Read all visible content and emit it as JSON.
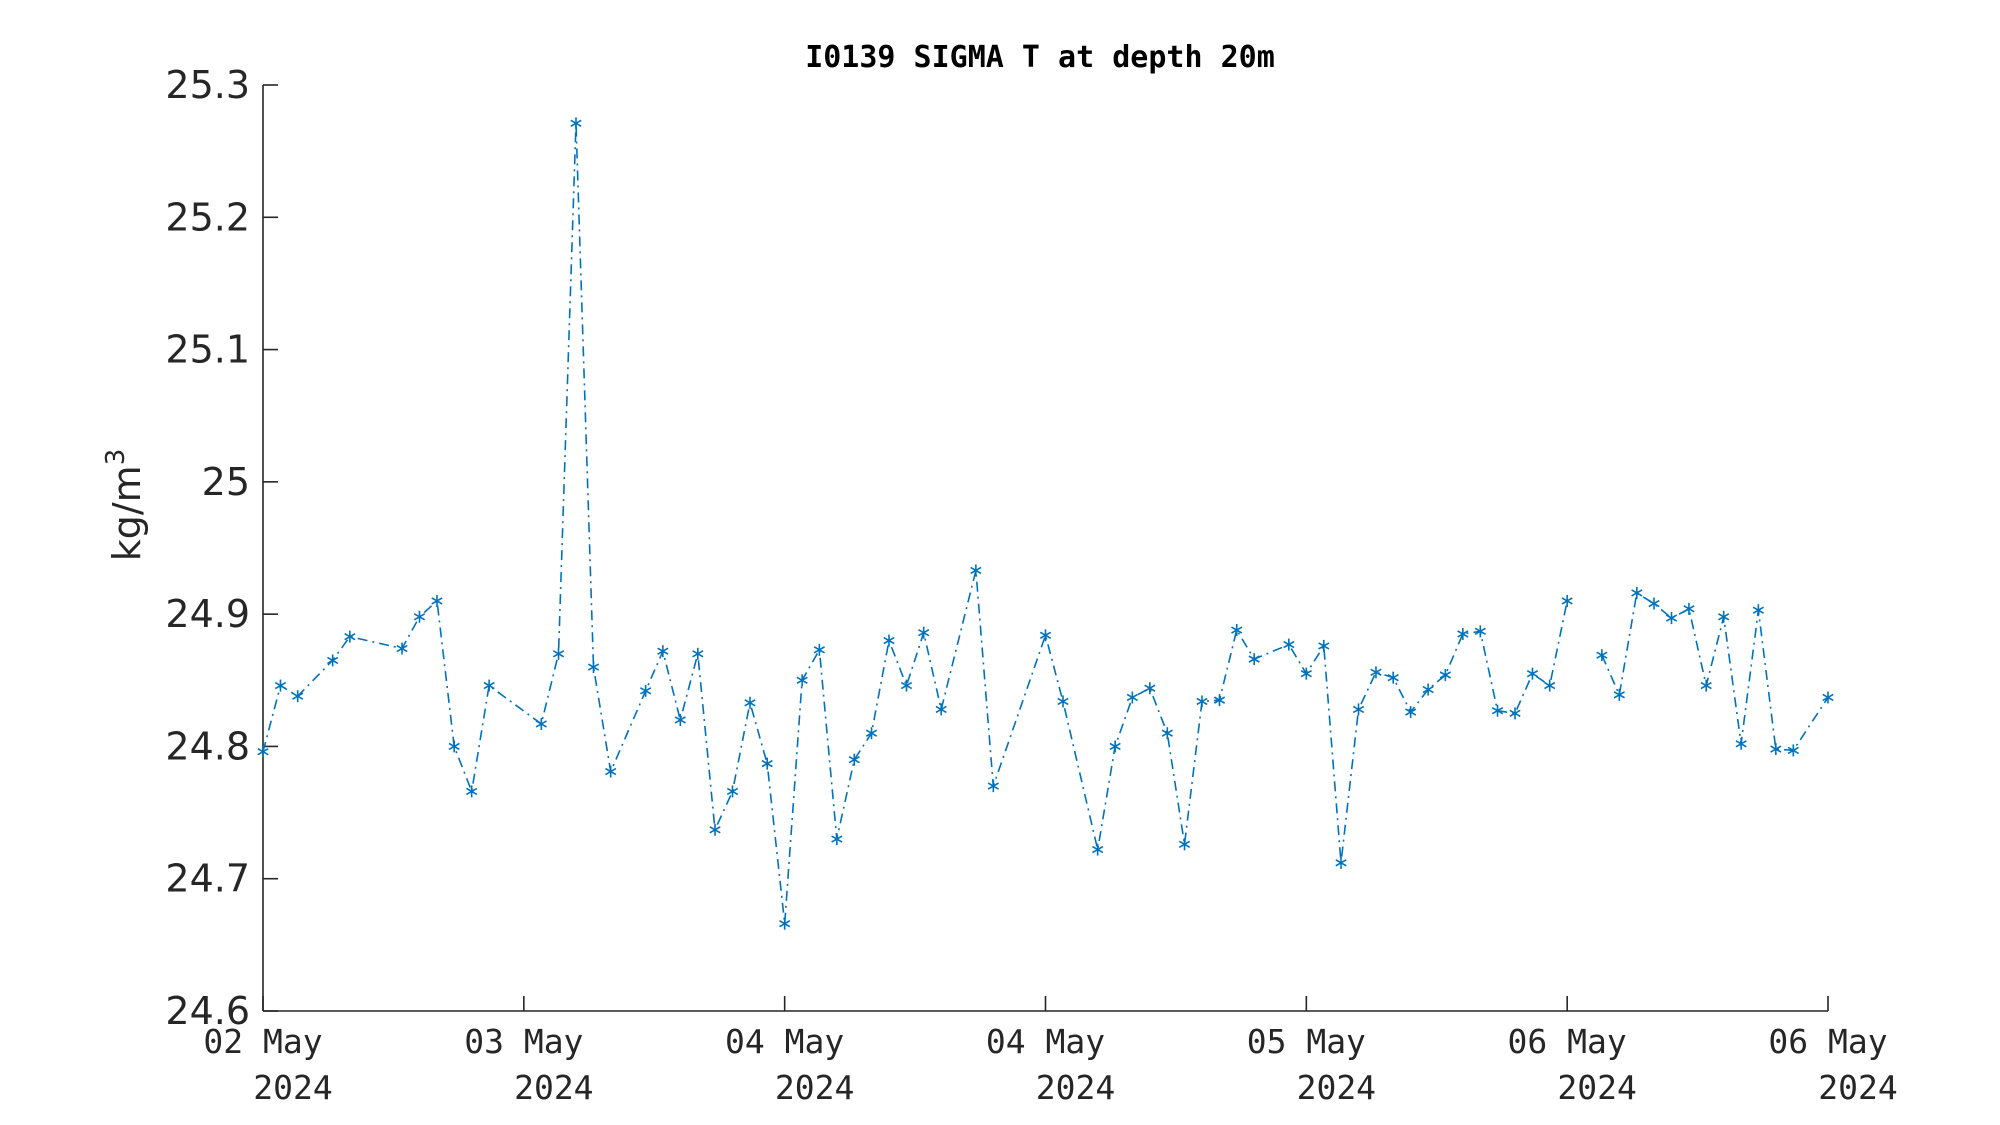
{
  "chart_data": {
    "type": "line",
    "title": "I0139 SIGMA T at depth 20m",
    "ylabel": "kg/m",
    "ylabel_sup": "3",
    "xlabel": "",
    "xlim": [
      0,
      6
    ],
    "ylim": [
      24.6,
      25.3
    ],
    "grid": false,
    "y_ticks": [
      24.6,
      24.7,
      24.8,
      24.9,
      25.0,
      25.1,
      25.2,
      25.3
    ],
    "y_tick_labels": [
      "24.6",
      "24.7",
      "24.8",
      "24.9",
      "25",
      "25.1",
      "25.2",
      "25.3"
    ],
    "x_ticks": [
      0,
      1,
      2,
      3,
      4,
      5,
      6
    ],
    "x_tick_labels": [
      [
        "02 May",
        "2024"
      ],
      [
        "03 May",
        "2024"
      ],
      [
        "04 May",
        "2024"
      ],
      [
        "04 May",
        "2024"
      ],
      [
        "05 May",
        "2024"
      ],
      [
        "06 May",
        "2024"
      ],
      [
        "06 May",
        "2024"
      ]
    ],
    "color": "#0072BD",
    "line_style": "dash-dot",
    "marker": "asterisk",
    "series": [
      {
        "segments": [
          {
            "x": [
              0,
              0.067,
              0.133,
              0.267,
              0.333,
              0.533,
              0.6,
              0.667,
              0.733,
              0.8,
              0.867,
              1.067,
              1.133,
              1.2,
              1.267,
              1.333,
              1.467,
              1.533,
              1.6,
              1.667,
              1.733,
              1.8,
              1.867,
              1.933,
              2.0,
              2.067,
              2.133,
              2.2,
              2.267,
              2.333,
              2.4,
              2.467,
              2.533,
              2.6,
              2.733,
              2.8,
              3.0,
              3.067,
              3.2,
              3.267,
              3.333,
              3.4,
              3.467,
              3.533,
              3.6,
              3.667,
              3.733,
              3.8,
              3.933,
              4.0,
              4.067,
              4.133,
              4.2,
              4.267,
              4.333,
              4.4,
              4.467,
              4.533,
              4.6,
              4.667,
              4.733,
              4.8,
              4.867,
              4.933,
              5.0
            ],
            "y": [
              24.796,
              24.846,
              24.838,
              24.865,
              24.883,
              24.874,
              24.898,
              24.91,
              24.8,
              24.766,
              24.846,
              24.817,
              24.87,
              25.271,
              24.86,
              24.781,
              24.842,
              24.872,
              24.82,
              24.87,
              24.737,
              24.766,
              24.833,
              24.787,
              24.666,
              24.85,
              24.873,
              24.73,
              24.79,
              24.81,
              24.88,
              24.846,
              24.886,
              24.828,
              24.933,
              24.77,
              24.884,
              24.834,
              24.722,
              24.8,
              24.837,
              24.844,
              24.81,
              24.726,
              24.834,
              24.835,
              24.888,
              24.866,
              24.877,
              24.855,
              24.876,
              24.712,
              24.828,
              24.856,
              24.852,
              24.826,
              24.843,
              24.854,
              24.885,
              24.887,
              24.827,
              24.825,
              24.855,
              24.846,
              24.91
            ]
          },
          {
            "x": [
              5.133,
              5.2,
              5.267,
              5.333,
              5.4,
              5.467,
              5.533,
              5.6,
              5.667,
              5.733,
              5.8,
              5.867,
              6.0
            ],
            "y": [
              24.869,
              24.839,
              24.916,
              24.908,
              24.897,
              24.904,
              24.846,
              24.898,
              24.802,
              24.903,
              24.798,
              24.797,
              24.837
            ]
          }
        ]
      }
    ]
  }
}
